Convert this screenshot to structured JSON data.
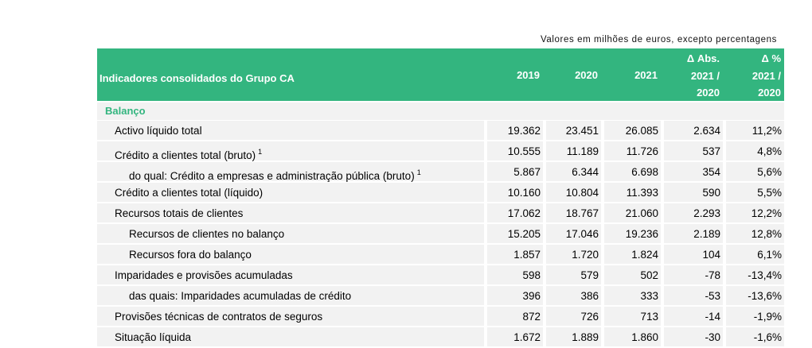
{
  "note": "Valores em milhões de euros, excepto percentagens",
  "header": {
    "title": "Indicadores consolidados do Grupo CA",
    "y2019": "2019",
    "y2020": "2020",
    "y2021": "2021",
    "abs_line1": "Δ Abs.",
    "abs_line2": "2021 /",
    "abs_line3": "2020",
    "pct_line1": "Δ %",
    "pct_line2": "2021 /",
    "pct_line3": "2020"
  },
  "section": "Balanço",
  "rows": [
    {
      "label": "Activo líquido total",
      "sup": "",
      "v2019": "19.362",
      "v2020": "23.451",
      "v2021": "26.085",
      "abs": "2.634",
      "pct": "11,2%"
    },
    {
      "label": "Crédito a clientes total (bruto)",
      "sup": "1",
      "v2019": "10.555",
      "v2020": "11.189",
      "v2021": "11.726",
      "abs": "537",
      "pct": "4,8%"
    },
    {
      "label": "do qual: Crédito a empresas e administração pública (bruto)",
      "sup": "1",
      "v2019": "5.867",
      "v2020": "6.344",
      "v2021": "6.698",
      "abs": "354",
      "pct": "5,6%"
    },
    {
      "label": "Crédito a clientes total (líquido)",
      "sup": "",
      "v2019": "10.160",
      "v2020": "10.804",
      "v2021": "11.393",
      "abs": "590",
      "pct": "5,5%"
    },
    {
      "label": "Recursos totais de clientes",
      "sup": "",
      "v2019": "17.062",
      "v2020": "18.767",
      "v2021": "21.060",
      "abs": "2.293",
      "pct": "12,2%"
    },
    {
      "label": "Recursos de clientes no balanço",
      "sup": "",
      "v2019": "15.205",
      "v2020": "17.046",
      "v2021": "19.236",
      "abs": "2.189",
      "pct": "12,8%"
    },
    {
      "label": "Recursos fora do balanço",
      "sup": "",
      "v2019": "1.857",
      "v2020": "1.720",
      "v2021": "1.824",
      "abs": "104",
      "pct": "6,1%"
    },
    {
      "label": "Imparidades e provisões acumuladas",
      "sup": "",
      "v2019": "598",
      "v2020": "579",
      "v2021": "502",
      "abs": "-78",
      "pct": "-13,4%"
    },
    {
      "label": "das quais: Imparidades acumuladas de crédito",
      "sup": "",
      "v2019": "396",
      "v2020": "386",
      "v2021": "333",
      "abs": "-53",
      "pct": "-13,6%"
    },
    {
      "label": "Provisões técnicas de contratos de seguros",
      "sup": "",
      "v2019": "872",
      "v2020": "726",
      "v2021": "713",
      "abs": "-14",
      "pct": "-1,9%"
    },
    {
      "label": "Situação líquida",
      "sup": "",
      "v2019": "1.672",
      "v2020": "1.889",
      "v2021": "1.860",
      "abs": "-30",
      "pct": "-1,6%"
    }
  ]
}
